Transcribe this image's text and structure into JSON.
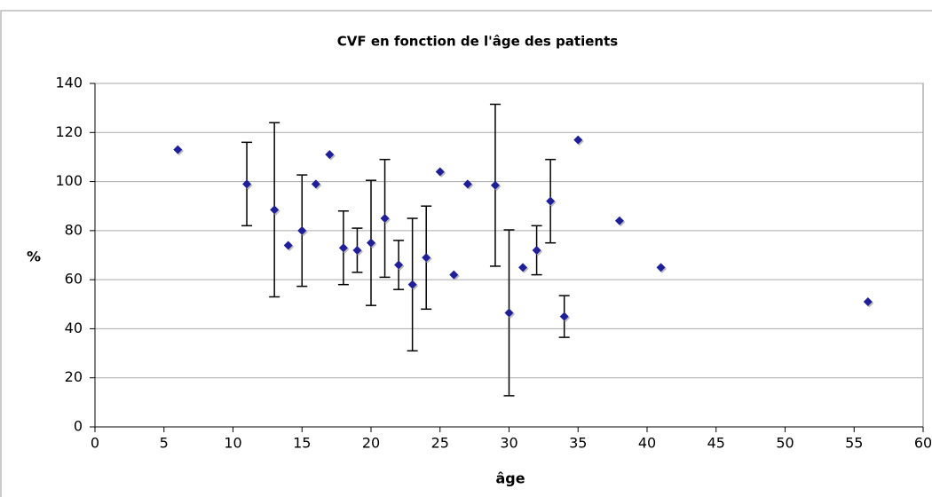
{
  "chart_data": {
    "type": "scatter",
    "title": "CVF en fonction de l'âge des patients",
    "x_label": "âge",
    "y_label": "%",
    "x": [
      6,
      11,
      13,
      14,
      15,
      16,
      17,
      18,
      19,
      20,
      21,
      22,
      23,
      24,
      25,
      26,
      27,
      29,
      30,
      31,
      32,
      33,
      34,
      35,
      38,
      41,
      56
    ],
    "values": [
      113,
      99,
      88.5,
      74,
      80,
      99,
      111,
      73,
      72,
      75,
      85,
      66,
      58,
      69,
      104,
      62,
      99,
      98.5,
      46.5,
      65,
      72,
      92,
      45,
      117,
      84,
      65,
      51
    ],
    "errors": [
      null,
      17,
      35.5,
      null,
      22.7,
      null,
      null,
      15,
      9,
      25.5,
      24,
      10,
      27,
      21,
      null,
      null,
      null,
      33,
      33.8,
      null,
      10,
      17,
      8.5,
      null,
      null,
      null,
      null
    ],
    "color": "#1f1f9a",
    "xlim": [
      0,
      60
    ],
    "xticks": [
      0,
      5,
      10,
      15,
      20,
      25,
      30,
      35,
      40,
      45,
      50,
      55,
      60
    ],
    "ylim": [
      0,
      140
    ],
    "yticks": [
      0,
      20,
      40,
      60,
      80,
      100,
      120,
      140
    ],
    "grid": true
  }
}
